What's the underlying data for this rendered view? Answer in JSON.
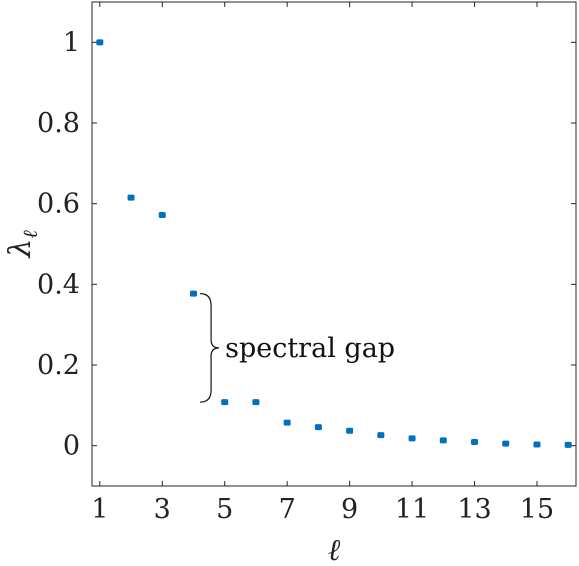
{
  "chart_data": {
    "type": "scatter",
    "xlabel": "ℓ",
    "ylabel": "λℓ",
    "ylabel_main": "λ",
    "ylabel_sub": "ℓ",
    "xlim": [
      0.75,
      16.25
    ],
    "ylim": [
      -0.1,
      1.1
    ],
    "xticks": [
      1,
      3,
      5,
      7,
      9,
      11,
      13,
      15
    ],
    "xtick_labels": [
      "1",
      "3",
      "5",
      "7",
      "9",
      "11",
      "13",
      "15"
    ],
    "yticks": [
      0,
      0.2,
      0.4,
      0.6,
      0.8,
      1
    ],
    "ytick_labels": [
      "0",
      "0.2",
      "0.4",
      "0.6",
      "0.8",
      "1"
    ],
    "grid": false,
    "marker_color": "#0072BD",
    "points": [
      {
        "x": 1,
        "y": 1.0
      },
      {
        "x": 2,
        "y": 0.615
      },
      {
        "x": 3,
        "y": 0.572
      },
      {
        "x": 4,
        "y": 0.377
      },
      {
        "x": 5,
        "y": 0.108
      },
      {
        "x": 6,
        "y": 0.108
      },
      {
        "x": 7,
        "y": 0.057
      },
      {
        "x": 8,
        "y": 0.046
      },
      {
        "x": 9,
        "y": 0.037
      },
      {
        "x": 10,
        "y": 0.026
      },
      {
        "x": 11,
        "y": 0.018
      },
      {
        "x": 12,
        "y": 0.013
      },
      {
        "x": 13,
        "y": 0.009
      },
      {
        "x": 14,
        "y": 0.005
      },
      {
        "x": 15,
        "y": 0.003
      },
      {
        "x": 16,
        "y": 0.002
      }
    ],
    "annotation": {
      "text": "spectral gap",
      "x": 4.5,
      "y_top": 0.377,
      "y_bottom": 0.108
    }
  }
}
